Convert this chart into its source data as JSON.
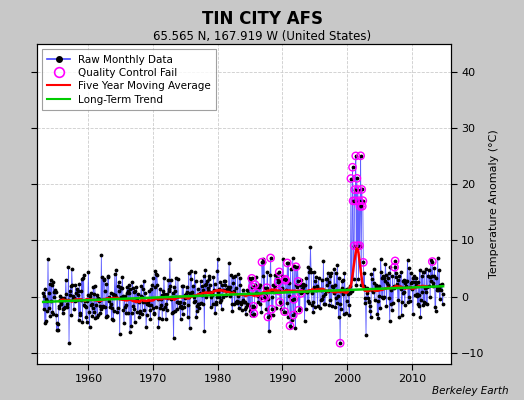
{
  "title": "TIN CITY AFS",
  "subtitle": "65.565 N, 167.919 W (United States)",
  "credit": "Berkeley Earth",
  "ylabel": "Temperature Anomaly (°C)",
  "xmin": 1952,
  "xmax": 2016,
  "ymin": -12,
  "ymax": 45,
  "yticks": [
    -10,
    0,
    10,
    20,
    30,
    40
  ],
  "xticks": [
    1960,
    1970,
    1980,
    1990,
    2000,
    2010
  ],
  "fig_bg": "#c8c8c8",
  "plot_bg": "#ffffff",
  "raw_line_color": "#4444ff",
  "raw_dot_color": "#000000",
  "qc_fail_color": "#ff00ff",
  "moving_avg_color": "#ff0000",
  "trend_color": "#00cc00",
  "seed": 12
}
